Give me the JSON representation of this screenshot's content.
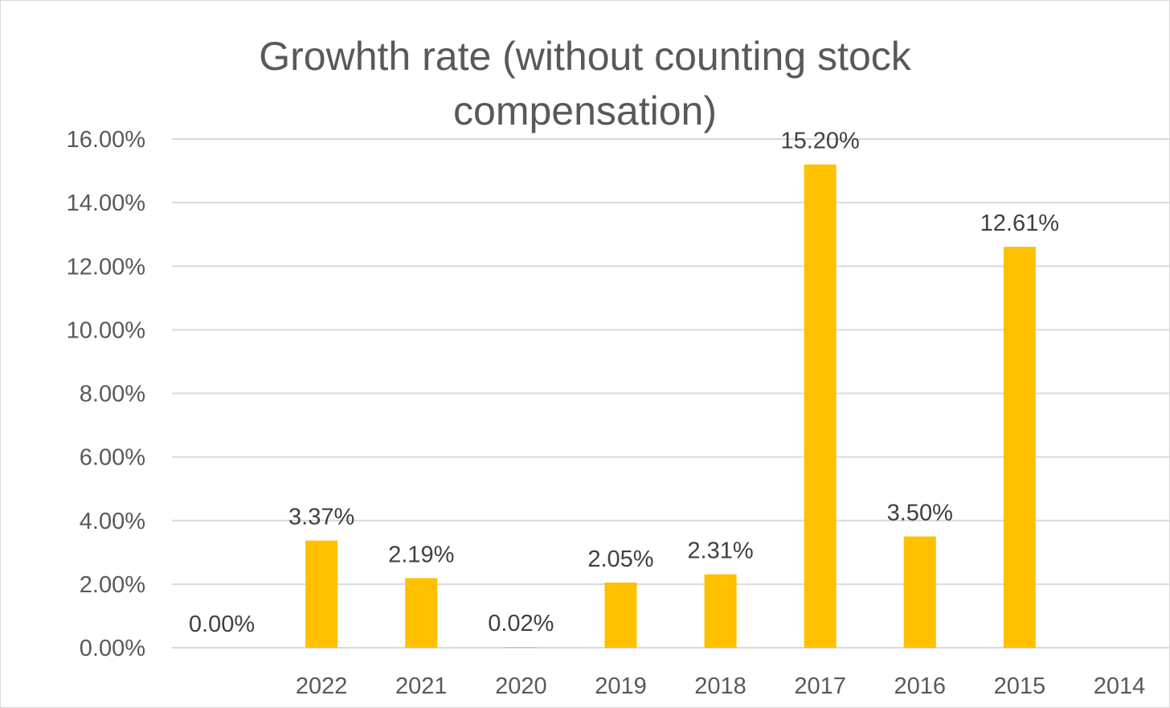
{
  "chart_data": {
    "type": "bar",
    "title_lines": [
      "Growhth rate (without counting stock",
      "compensation)"
    ],
    "categories": [
      "",
      "2022",
      "2021",
      "2020",
      "2019",
      "2018",
      "2017",
      "2016",
      "2015",
      "2014"
    ],
    "values": [
      0.0,
      3.37,
      2.19,
      0.02,
      2.05,
      2.31,
      15.2,
      3.5,
      12.61,
      null
    ],
    "data_labels": [
      "0.00%",
      "3.37%",
      "2.19%",
      "0.02%",
      "2.05%",
      "2.31%",
      "15.20%",
      "3.50%",
      "12.61%",
      ""
    ],
    "ylim": [
      0,
      16
    ],
    "yticks": [
      "0.00%",
      "2.00%",
      "4.00%",
      "6.00%",
      "8.00%",
      "10.00%",
      "12.00%",
      "14.00%",
      "16.00%"
    ],
    "grid": true,
    "legend": "none",
    "bar_color": "#FFC000"
  }
}
